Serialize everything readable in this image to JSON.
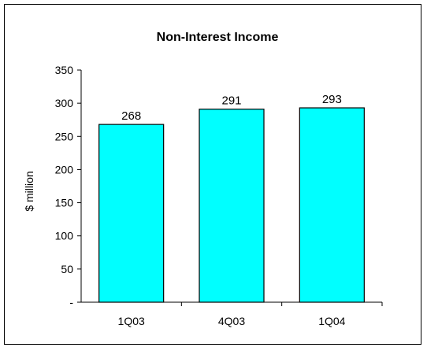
{
  "chart_data": {
    "type": "bar",
    "title": "Non-Interest Income",
    "ylabel": "$ million",
    "xlabel": "",
    "categories": [
      "1Q03",
      "4Q03",
      "1Q04"
    ],
    "values": [
      268,
      291,
      293
    ],
    "data_labels": [
      "268",
      "291",
      "293"
    ],
    "ylim": [
      0,
      350
    ],
    "yticks": [
      0,
      50,
      100,
      150,
      200,
      250,
      300,
      350
    ],
    "ytick_labels": [
      "-",
      "50",
      "100",
      "150",
      "200",
      "250",
      "300",
      "350"
    ],
    "grid": false,
    "legend": "none",
    "colors": {
      "bar_fill": "#00FFFF",
      "bar_stroke": "#000000",
      "axis": "#000000"
    }
  }
}
